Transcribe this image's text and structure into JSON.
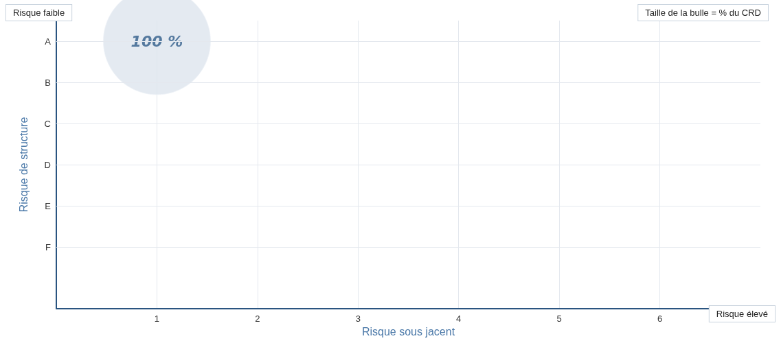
{
  "chart_data": {
    "type": "bubble",
    "orientation": "horizontal",
    "xlabel": "Risque sous jacent",
    "ylabel": "Risque de structure",
    "categories": [
      "A",
      "B",
      "C",
      "D",
      "E",
      "F",
      null
    ],
    "values": [
      1,
      null,
      null,
      null,
      null,
      null,
      null
    ],
    "sizes": [
      1,
      null,
      null,
      null,
      null,
      null,
      null
    ],
    "value_labels": [
      "100 %",
      null,
      null,
      null,
      null,
      null,
      null
    ],
    "color": "#dde5ee",
    "xlim": [
      0,
      7
    ],
    "xticks": [
      1,
      2,
      3,
      4,
      5,
      6
    ],
    "grid": true,
    "annotations": [
      "Risque faible",
      "Risque élevé",
      "Taille de la bulle = % du CRD"
    ]
  }
}
